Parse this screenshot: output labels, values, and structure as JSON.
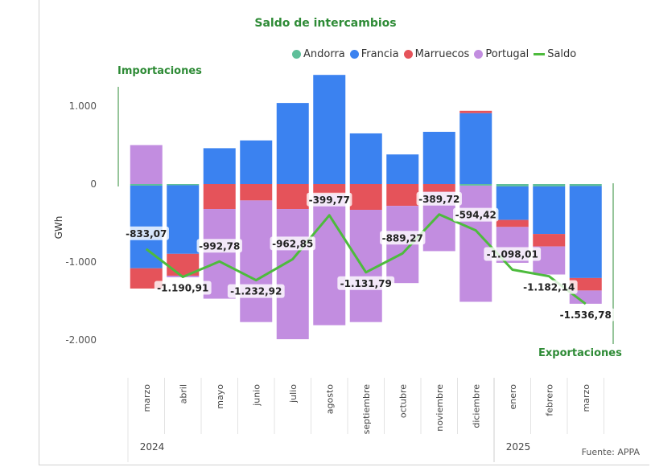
{
  "source": "Fuente: APPA",
  "side_labels": {
    "imports": "Importaciones",
    "exports": "Exportaciones"
  },
  "colors": {
    "Andorra": "#5fbf9a",
    "Francia": "#3b82f0",
    "Marruecos": "#e5535a",
    "Portugal": "#c28de0",
    "Saldo": "#4dbb3d"
  },
  "chart_data": {
    "type": "bar",
    "title": "Saldo de intercambios",
    "ylabel": "GWh",
    "ylim": [
      -2200,
      1400
    ],
    "yticks": [
      1000,
      0,
      -1000,
      -2000
    ],
    "ytick_labels": [
      "1.000",
      "0",
      "-1.000",
      "-2.000"
    ],
    "categories": [
      "marzo",
      "abril",
      "mayo",
      "junio",
      "julio",
      "agosto",
      "septiembre",
      "octubre",
      "noviembre",
      "diciembre",
      "enero",
      "febrero",
      "marzo"
    ],
    "years": [
      {
        "label": "2024",
        "from": 0,
        "to": 9
      },
      {
        "label": "2025",
        "from": 10,
        "to": 12
      }
    ],
    "legend": [
      "Andorra",
      "Francia",
      "Marruecos",
      "Portugal",
      "Saldo"
    ],
    "series": [
      {
        "name": "Andorra",
        "values": [
          -20,
          -15,
          0,
          0,
          0,
          0,
          0,
          0,
          0,
          -20,
          -30,
          -30,
          -25
        ]
      },
      {
        "name": "Francia",
        "values": [
          -1060,
          -880,
          460,
          560,
          1040,
          1400,
          650,
          380,
          670,
          910,
          -430,
          -610,
          -1180
        ]
      },
      {
        "name": "Marruecos",
        "values": [
          -260,
          -280,
          -320,
          -210,
          -320,
          -130,
          -330,
          -280,
          -100,
          30,
          -90,
          -160,
          -160
        ]
      },
      {
        "name": "Portugal",
        "values": [
          500,
          -20,
          -1150,
          -1560,
          -1670,
          -1680,
          -1440,
          -990,
          -760,
          -1490,
          -460,
          -360,
          -170
        ]
      }
    ],
    "saldo": {
      "name": "Saldo",
      "values": [
        -833.07,
        -1190.91,
        -992.78,
        -1232.92,
        -962.85,
        -399.77,
        -1131.79,
        -889.27,
        -389.72,
        -594.42,
        -1098.01,
        -1182.14,
        -1536.78
      ],
      "labels": [
        "-833,07",
        "-1.190,91",
        "-992,78",
        "-1.232,92",
        "-962,85",
        "-399,77",
        "-1.131,79",
        "-889,27",
        "-389,72",
        "-594,42",
        "-1.098,01",
        "-1.182,14",
        "-1.536,78"
      ]
    }
  }
}
